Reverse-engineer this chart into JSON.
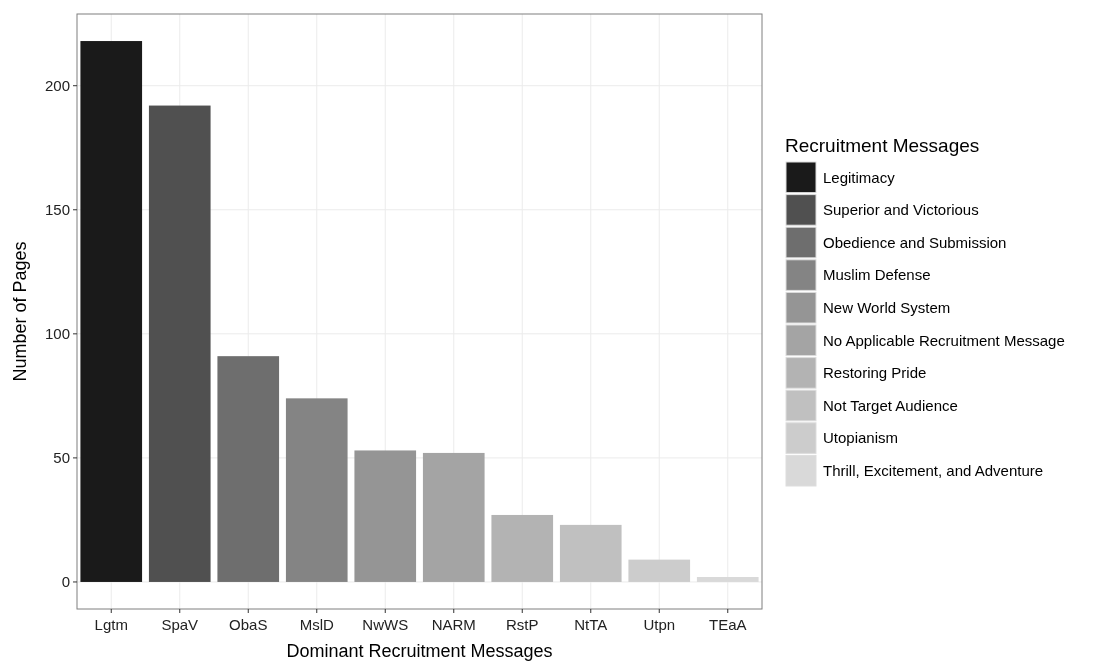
{
  "chart_data": {
    "type": "bar",
    "xlabel": "Dominant Recruitment Messages",
    "ylabel": "Number of Pages",
    "legend_title": "Recruitment Messages",
    "categories": [
      "Lgtm",
      "SpaV",
      "ObaS",
      "MslD",
      "NwWS",
      "NARM",
      "RstP",
      "NtTA",
      "Utpn",
      "TEaA"
    ],
    "legend": "right",
    "grid": true,
    "ylim": [
      -10.9,
      228.9
    ],
    "yticks": [
      0,
      50,
      100,
      150,
      200
    ],
    "series": [
      {
        "name": "Legitimacy",
        "color": "#1a1a1a",
        "values": [
          218,
          null,
          null,
          null,
          null,
          null,
          null,
          null,
          null,
          null
        ]
      },
      {
        "name": "Superior and Victorious",
        "color": "#505050",
        "values": [
          null,
          192,
          null,
          null,
          null,
          null,
          null,
          null,
          null,
          null
        ]
      },
      {
        "name": "Obedience and Submission",
        "color": "#6e6e6e",
        "values": [
          null,
          null,
          91,
          null,
          null,
          null,
          null,
          null,
          null,
          null
        ]
      },
      {
        "name": "Muslim Defense",
        "color": "#848484",
        "values": [
          null,
          null,
          null,
          74,
          null,
          null,
          null,
          null,
          null,
          null
        ]
      },
      {
        "name": "New World System",
        "color": "#959595",
        "values": [
          null,
          null,
          null,
          null,
          53,
          null,
          null,
          null,
          null,
          null
        ]
      },
      {
        "name": "No Applicable Recruitment Message",
        "color": "#a4a4a4",
        "values": [
          null,
          null,
          null,
          null,
          null,
          52,
          null,
          null,
          null,
          null
        ]
      },
      {
        "name": "Restoring Pride",
        "color": "#b3b3b3",
        "values": [
          null,
          null,
          null,
          null,
          null,
          null,
          27,
          null,
          null,
          null
        ]
      },
      {
        "name": "Not Target Audience",
        "color": "#c0c0c0",
        "values": [
          null,
          null,
          null,
          null,
          null,
          null,
          null,
          23,
          null,
          null
        ]
      },
      {
        "name": "Utopianism",
        "color": "#cccccc",
        "values": [
          null,
          null,
          null,
          null,
          null,
          null,
          null,
          null,
          9,
          null
        ]
      },
      {
        "name": "Thrill, Excitement, and Adventure",
        "color": "#d9d9d9",
        "values": [
          null,
          null,
          null,
          null,
          null,
          null,
          null,
          null,
          null,
          2
        ]
      }
    ]
  }
}
